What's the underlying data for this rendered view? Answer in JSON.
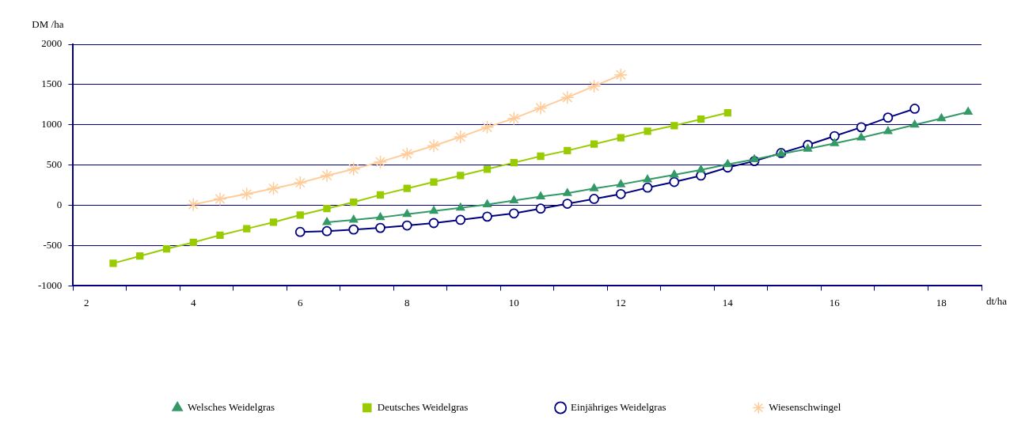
{
  "chart_data": {
    "type": "line",
    "xlabel": "dt/ha",
    "ylabel": "DM /ha",
    "xlim": [
      1.75,
      18.75
    ],
    "xticks": [
      {
        "value": 1.75,
        "label": null
      },
      2,
      {
        "value": 2.75,
        "label": null
      },
      {
        "value": 3.75,
        "label": null
      },
      4,
      {
        "value": 4.75,
        "label": null
      },
      {
        "value": 5.75,
        "label": null
      },
      6,
      {
        "value": 6.75,
        "label": null
      },
      {
        "value": 7.75,
        "label": null
      },
      8,
      {
        "value": 8.75,
        "label": null
      },
      {
        "value": 9.75,
        "label": null
      },
      10,
      {
        "value": 10.75,
        "label": null
      },
      {
        "value": 11.75,
        "label": null
      },
      12,
      {
        "value": 12.75,
        "label": null
      },
      {
        "value": 13.75,
        "label": null
      },
      14,
      {
        "value": 14.75,
        "label": null
      },
      {
        "value": 15.75,
        "label": null
      },
      16,
      {
        "value": 16.75,
        "label": null
      },
      {
        "value": 17.75,
        "label": null
      },
      18,
      {
        "value": 18.75,
        "label": null
      }
    ],
    "ylim": [
      -1000,
      2000
    ],
    "yticks": [
      -1000,
      -500,
      0,
      500,
      1000,
      1500,
      2000
    ],
    "grid": "y",
    "legend": "bottom",
    "line_style": "solid",
    "series": [
      {
        "name": "Welsches Weidelgras",
        "color": "#339966",
        "marker": "triangle",
        "x": [
          6.5,
          7,
          7.5,
          8,
          8.5,
          9,
          9.5,
          10,
          10.5,
          11,
          11.5,
          12,
          12.5,
          13,
          13.5,
          14,
          14.5,
          15,
          15.5,
          16,
          16.5,
          17,
          17.5,
          18,
          18.5
        ],
        "values": [
          -210,
          -180,
          -150,
          -110,
          -70,
          -30,
          10,
          60,
          110,
          150,
          210,
          260,
          320,
          380,
          440,
          510,
          570,
          640,
          700,
          770,
          840,
          920,
          1000,
          1080,
          1160
        ]
      },
      {
        "name": "Deutsches Weidelgras",
        "color": "#99cc00",
        "marker": "square",
        "x": [
          2.5,
          3,
          3.5,
          4,
          4.5,
          5,
          5.5,
          6,
          6.5,
          7,
          7.5,
          8,
          8.5,
          9,
          9.5,
          10,
          10.5,
          11,
          11.5,
          12,
          12.5,
          13,
          13.5,
          14
        ],
        "values": [
          -720,
          -630,
          -540,
          -460,
          -370,
          -290,
          -210,
          -120,
          -40,
          40,
          130,
          210,
          290,
          370,
          450,
          530,
          610,
          680,
          760,
          840,
          920,
          990,
          1070,
          1150
        ]
      },
      {
        "name": "Einjähriges Weidelgras",
        "color": "#000080",
        "marker": "circle",
        "x": [
          6,
          6.5,
          7,
          7.5,
          8,
          8.5,
          9,
          9.5,
          10,
          10.5,
          11,
          11.5,
          12,
          12.5,
          13,
          13.5,
          14,
          14.5,
          15,
          15.5,
          16,
          16.5,
          17,
          17.5
        ],
        "values": [
          -330,
          -320,
          -300,
          -280,
          -250,
          -220,
          -180,
          -140,
          -100,
          -40,
          20,
          80,
          140,
          220,
          290,
          370,
          470,
          550,
          650,
          750,
          860,
          970,
          1090,
          1200
        ]
      },
      {
        "name": "Wiesenschwingel",
        "color": "#ffcc99",
        "marker": "cross",
        "x": [
          4,
          4.5,
          5,
          5.5,
          6,
          6.5,
          7,
          7.5,
          8,
          8.5,
          9,
          9.5,
          10,
          10.5,
          11,
          11.5,
          12
        ],
        "values": [
          10,
          80,
          140,
          210,
          280,
          370,
          450,
          540,
          640,
          740,
          850,
          970,
          1080,
          1210,
          1340,
          1480,
          1620
        ]
      }
    ]
  }
}
